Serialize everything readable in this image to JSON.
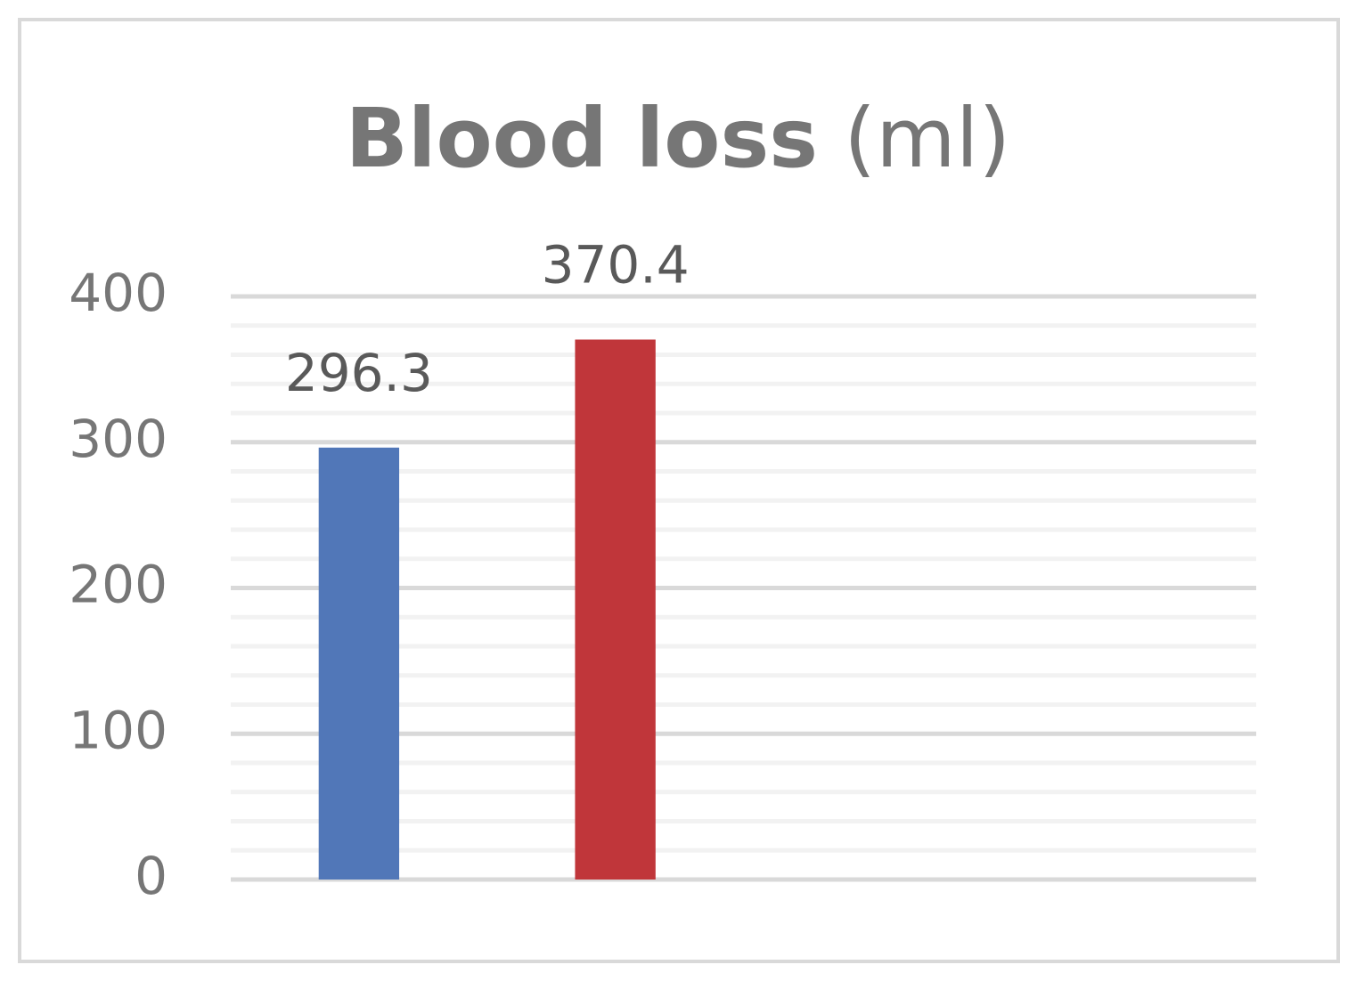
{
  "chart_data": {
    "type": "bar",
    "title": "Blood loss",
    "title_unit": "(ml)",
    "categories": [
      null,
      null,
      null,
      null
    ],
    "values": [
      296.3,
      370.4,
      null,
      null
    ],
    "colors": [
      "#5177b8",
      "#c0363a"
    ],
    "ylim": [
      0,
      400
    ],
    "yticks": [
      0,
      100,
      200,
      300,
      400
    ],
    "minor_yticks": [
      20,
      40,
      60,
      80,
      120,
      140,
      160,
      180,
      220,
      240,
      260,
      280,
      320,
      340,
      360,
      380
    ],
    "grid": true,
    "data_labels": true
  }
}
